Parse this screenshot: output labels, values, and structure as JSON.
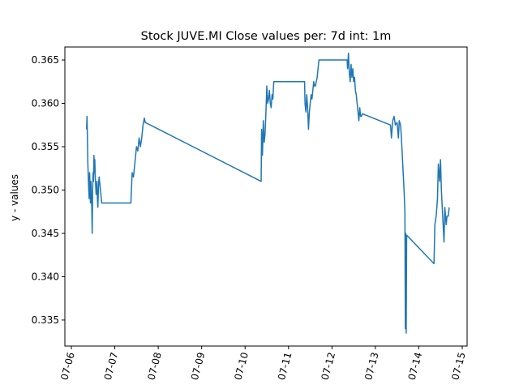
{
  "chart_data": {
    "type": "line",
    "title": "Stock JUVE.MI Close values per: 7d int: 1m",
    "xlabel": "",
    "ylabel": "y - values",
    "xlim": [
      0,
      9
    ],
    "ylim": [
      0.332,
      0.3665
    ],
    "grid": false,
    "line_color": "#1f77b4",
    "x_ticks": [
      {
        "label": "07-06",
        "value": 0.0
      },
      {
        "label": "07-07",
        "value": 1.0
      },
      {
        "label": "07-08",
        "value": 2.0
      },
      {
        "label": "07-09",
        "value": 3.0
      },
      {
        "label": "07-10",
        "value": 4.0
      },
      {
        "label": "07-11",
        "value": 5.0
      },
      {
        "label": "07-12",
        "value": 6.0
      },
      {
        "label": "07-13",
        "value": 7.0
      },
      {
        "label": "07-14",
        "value": 8.0
      },
      {
        "label": "07-15",
        "value": 9.0
      }
    ],
    "y_ticks": [
      {
        "label": "0.335",
        "value": 0.335
      },
      {
        "label": "0.340",
        "value": 0.34
      },
      {
        "label": "0.345",
        "value": 0.345
      },
      {
        "label": "0.350",
        "value": 0.35
      },
      {
        "label": "0.355",
        "value": 0.355
      },
      {
        "label": "0.360",
        "value": 0.36
      },
      {
        "label": "0.365",
        "value": 0.365
      }
    ],
    "series": [
      {
        "x": [
          0.35,
          0.36,
          0.37,
          0.38,
          0.39,
          0.4,
          0.41,
          0.42,
          0.43,
          0.44,
          0.45,
          0.46,
          0.47,
          0.48,
          0.49,
          0.5,
          0.51,
          0.52,
          0.53,
          0.54,
          0.55,
          0.56,
          0.57,
          0.58,
          0.59,
          0.6,
          0.61,
          0.62,
          0.63,
          0.64,
          0.65,
          0.66,
          0.67,
          0.68,
          0.69,
          0.7,
          1.37,
          1.4,
          1.43,
          1.46,
          1.5,
          1.53,
          1.56,
          1.59,
          1.62,
          1.65,
          1.68,
          1.7,
          4.37,
          4.38,
          4.4,
          4.42,
          4.44,
          4.46,
          4.48,
          4.5,
          4.52,
          4.54,
          4.56,
          4.58,
          4.6,
          4.62,
          4.64,
          4.66,
          4.68,
          4.7,
          5.37,
          5.38,
          5.4,
          5.42,
          5.44,
          5.46,
          5.48,
          5.5,
          5.52,
          5.54,
          5.56,
          5.58,
          5.6,
          5.62,
          5.64,
          5.66,
          5.68,
          5.7,
          6.35,
          6.36,
          6.38,
          6.4,
          6.42,
          6.44,
          6.46,
          6.48,
          6.5,
          6.52,
          6.54,
          6.56,
          6.58,
          6.6,
          6.62,
          6.64,
          6.66,
          6.68,
          6.7,
          7.35,
          7.37,
          7.4,
          7.43,
          7.46,
          7.5,
          7.53,
          7.55,
          7.58,
          7.6,
          7.62,
          7.64,
          7.66,
          7.68,
          7.69,
          7.7,
          7.71,
          7.72,
          8.35,
          8.37,
          8.4,
          8.43,
          8.45,
          8.48,
          8.5,
          8.52,
          8.55,
          8.58,
          8.6,
          8.63,
          8.65,
          8.68,
          8.7
        ],
        "y": [
          0.357,
          0.3585,
          0.356,
          0.353,
          0.3515,
          0.35,
          0.349,
          0.352,
          0.3505,
          0.3485,
          0.351,
          0.3495,
          0.348,
          0.345,
          0.35,
          0.352,
          0.351,
          0.354,
          0.352,
          0.3535,
          0.3515,
          0.3505,
          0.3495,
          0.35,
          0.351,
          0.349,
          0.348,
          0.3495,
          0.351,
          0.3515,
          0.351,
          0.3505,
          0.35,
          0.3495,
          0.349,
          0.3485,
          0.3485,
          0.352,
          0.3515,
          0.353,
          0.355,
          0.3545,
          0.356,
          0.355,
          0.356,
          0.3575,
          0.3583,
          0.3578,
          0.351,
          0.357,
          0.354,
          0.358,
          0.3555,
          0.3565,
          0.359,
          0.362,
          0.36,
          0.3605,
          0.3615,
          0.36,
          0.3595,
          0.361,
          0.3605,
          0.3625,
          0.3625,
          0.3625,
          0.3625,
          0.36,
          0.359,
          0.361,
          0.3595,
          0.357,
          0.359,
          0.36,
          0.361,
          0.3605,
          0.3615,
          0.3625,
          0.362,
          0.362,
          0.3625,
          0.363,
          0.364,
          0.365,
          0.365,
          0.364,
          0.3658,
          0.3635,
          0.3625,
          0.3645,
          0.363,
          0.364,
          0.3625,
          0.363,
          0.3615,
          0.361,
          0.36,
          0.359,
          0.358,
          0.3595,
          0.3585,
          0.3585,
          0.3588,
          0.3575,
          0.356,
          0.358,
          0.3585,
          0.3575,
          0.3578,
          0.356,
          0.358,
          0.3575,
          0.356,
          0.354,
          0.352,
          0.35,
          0.3475,
          0.334,
          0.345,
          0.3335,
          0.3448,
          0.3415,
          0.346,
          0.347,
          0.349,
          0.353,
          0.351,
          0.3535,
          0.35,
          0.347,
          0.344,
          0.348,
          0.346,
          0.347,
          0.347,
          0.348
        ]
      }
    ]
  }
}
